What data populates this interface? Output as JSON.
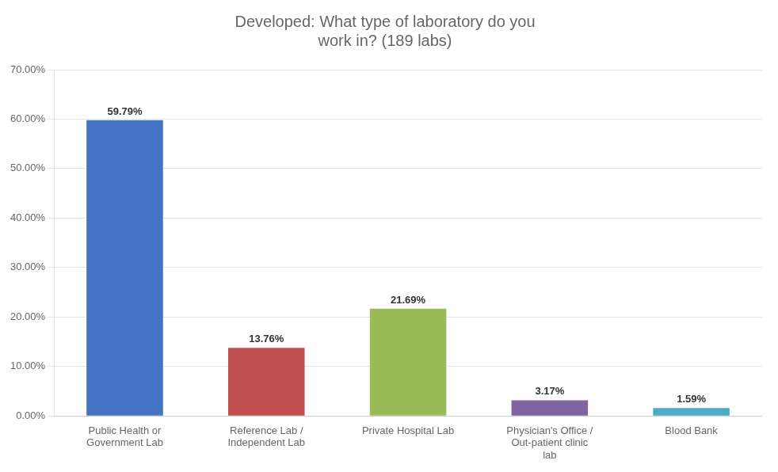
{
  "chart_data": {
    "type": "bar",
    "title": "Developed: What type of laboratory do you\nwork in? (189 labs)",
    "categories": [
      "Public Health or\nGovernment Lab",
      "Reference Lab /\nIndependent Lab",
      "Private Hospital Lab",
      "Physician's Office /\nOut-patient clinic\nlab",
      "Blood Bank"
    ],
    "values": [
      59.79,
      13.76,
      21.69,
      3.17,
      1.59
    ],
    "value_labels": [
      "59.79%",
      "13.76%",
      "21.69%",
      "3.17%",
      "1.59%"
    ],
    "data_labels": true,
    "colors": [
      "#4472C4",
      "#C0504D",
      "#9BBB59",
      "#8064A2",
      "#4BACC6"
    ],
    "ylim": [
      0,
      70
    ],
    "yticks": [
      {
        "value": 0,
        "label": "0.00%"
      },
      {
        "value": 10,
        "label": "10.00%"
      },
      {
        "value": 20,
        "label": "20.00%"
      },
      {
        "value": 30,
        "label": "30.00%"
      },
      {
        "value": 40,
        "label": "40.00%"
      },
      {
        "value": 50,
        "label": "50.00%"
      },
      {
        "value": 60,
        "label": "60.00%"
      },
      {
        "value": 70,
        "label": "70.00%"
      }
    ],
    "grid": true
  }
}
